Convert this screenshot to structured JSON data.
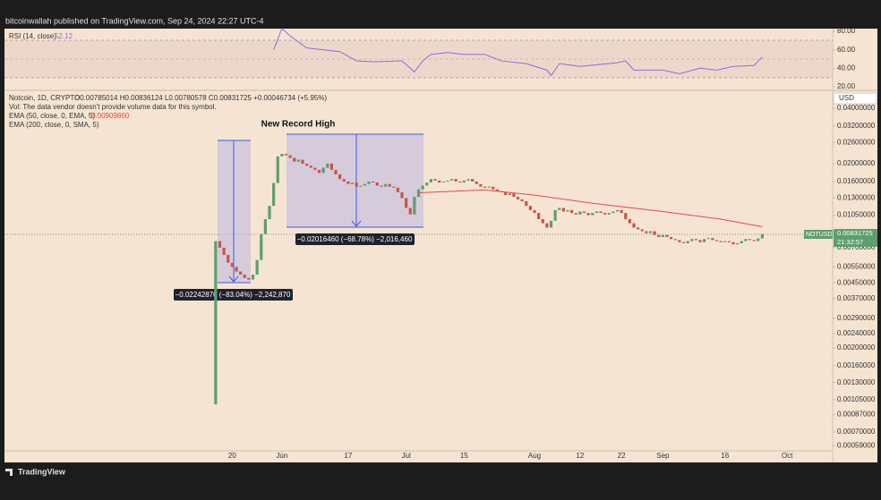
{
  "header": "bitcoinwallah published on TradingView.com, Sep 24, 2024 22:27 UTC-4",
  "footer": "TradingView",
  "chart_data": [
    {
      "type": "candlestick",
      "title": "Notcoin, 1D, CRYPTO",
      "ohlc_label": "O0.00785014 H0.00836124 L0.00780578 C0.00831725 +0.00046734 (+5.95%)",
      "volume_note": "Vol: The data vendor doesn't provide volume data for this symbol.",
      "ema200_label": "EMA (200, close, 0, SMA, 5)",
      "currency": "USD",
      "symbol_label": "NOTUSD",
      "countdown": "21:32:57",
      "annotations": [
        "New Record High",
        "−0.02242870 (−83.04%) −2,242,870",
        "−0.02016460 (−68.78%) −2,016,460"
      ],
      "up_color": "#5e9e6e",
      "down_color": "#c8554c",
      "log": true,
      "xlim": [
        "2024-03-26",
        "2024-10-12"
      ],
      "xticks": [
        {
          "value": "2024-05-20",
          "label": "20"
        },
        {
          "value": "2024-06-01",
          "label": "Jun"
        },
        {
          "value": "2024-06-17",
          "label": "17"
        },
        {
          "value": "2024-07-01",
          "label": "Jul"
        },
        {
          "value": "2024-07-15",
          "label": "15"
        },
        {
          "value": "2024-08-01",
          "label": "Aug"
        },
        {
          "value": "2024-08-12",
          "label": "12"
        },
        {
          "value": "2024-08-22",
          "label": "22"
        },
        {
          "value": "2024-09-01",
          "label": "Sep"
        },
        {
          "value": "2024-09-16",
          "label": "16"
        },
        {
          "value": "2024-10-01",
          "label": "Oct"
        }
      ],
      "ylim": [
        0.00049,
        0.0494
      ],
      "yticks": [
        {
          "value": 0.04,
          "label": "0.04000000"
        },
        {
          "value": 0.032,
          "label": "0.03200000"
        },
        {
          "value": 0.026,
          "label": "0.02600000"
        },
        {
          "value": 0.02,
          "label": "0.02000000"
        },
        {
          "value": 0.016,
          "label": "0.01600000"
        },
        {
          "value": 0.013,
          "label": "0.01300000"
        },
        {
          "value": 0.0105,
          "label": "0.01050000"
        },
        {
          "value": 0.007,
          "label": "0.00700000"
        },
        {
          "value": 0.0055,
          "label": "0.00550000"
        },
        {
          "value": 0.0045,
          "label": "0.00450000"
        },
        {
          "value": 0.0037,
          "label": "0.00370000"
        },
        {
          "value": 0.0029,
          "label": "0.00290000"
        },
        {
          "value": 0.0024,
          "label": "0.00240000"
        },
        {
          "value": 0.002,
          "label": "0.00200000"
        },
        {
          "value": 0.0016,
          "label": "0.00160000"
        },
        {
          "value": 0.0013,
          "label": "0.00130000"
        },
        {
          "value": 0.00105,
          "label": "0.00105000"
        },
        {
          "value": 0.00087,
          "label": "0.00087000"
        },
        {
          "value": 0.0007,
          "label": "0.00070000"
        },
        {
          "value": 0.00059,
          "label": "0.00059000"
        }
      ],
      "x": [
        "2024-05-16",
        "2024-05-17",
        "2024-05-18",
        "2024-05-19",
        "2024-05-20",
        "2024-05-21",
        "2024-05-22",
        "2024-05-23",
        "2024-05-24",
        "2024-05-25",
        "2024-05-26",
        "2024-05-27",
        "2024-05-28",
        "2024-05-29",
        "2024-05-30",
        "2024-05-31",
        "2024-06-01",
        "2024-06-02",
        "2024-06-03",
        "2024-06-04",
        "2024-06-05",
        "2024-06-06",
        "2024-06-07",
        "2024-06-08",
        "2024-06-09",
        "2024-06-10",
        "2024-06-11",
        "2024-06-12",
        "2024-06-13",
        "2024-06-14",
        "2024-06-15",
        "2024-06-16",
        "2024-06-17",
        "2024-06-18",
        "2024-06-19",
        "2024-06-20",
        "2024-06-21",
        "2024-06-22",
        "2024-06-23",
        "2024-06-24",
        "2024-06-25",
        "2024-06-26",
        "2024-06-27",
        "2024-06-28",
        "2024-06-29",
        "2024-06-30",
        "2024-07-01",
        "2024-07-02",
        "2024-07-03",
        "2024-07-04",
        "2024-07-05",
        "2024-07-06",
        "2024-07-07",
        "2024-07-08",
        "2024-07-09",
        "2024-07-10",
        "2024-07-11",
        "2024-07-12",
        "2024-07-13",
        "2024-07-14",
        "2024-07-15",
        "2024-07-16",
        "2024-07-17",
        "2024-07-18",
        "2024-07-19",
        "2024-07-20",
        "2024-07-21",
        "2024-07-22",
        "2024-07-23",
        "2024-07-24",
        "2024-07-25",
        "2024-07-26",
        "2024-07-27",
        "2024-07-28",
        "2024-07-29",
        "2024-07-30",
        "2024-07-31",
        "2024-08-01",
        "2024-08-02",
        "2024-08-03",
        "2024-08-04",
        "2024-08-05",
        "2024-08-06",
        "2024-08-07",
        "2024-08-08",
        "2024-08-09",
        "2024-08-10",
        "2024-08-11",
        "2024-08-12",
        "2024-08-13",
        "2024-08-14",
        "2024-08-15",
        "2024-08-16",
        "2024-08-17",
        "2024-08-18",
        "2024-08-19",
        "2024-08-20",
        "2024-08-21",
        "2024-08-22",
        "2024-08-23",
        "2024-08-24",
        "2024-08-25",
        "2024-08-26",
        "2024-08-27",
        "2024-08-28",
        "2024-08-29",
        "2024-08-30",
        "2024-08-31",
        "2024-09-01",
        "2024-09-02",
        "2024-09-03",
        "2024-09-04",
        "2024-09-05",
        "2024-09-06",
        "2024-09-07",
        "2024-09-08",
        "2024-09-09",
        "2024-09-10",
        "2024-09-11",
        "2024-09-12",
        "2024-09-13",
        "2024-09-14",
        "2024-09-15",
        "2024-09-16",
        "2024-09-17",
        "2024-09-18",
        "2024-09-19",
        "2024-09-20",
        "2024-09-21",
        "2024-09-22",
        "2024-09-23",
        "2024-09-24",
        "2024-09-25"
      ],
      "open": [
        0.00099,
        0.0076,
        0.007,
        0.0064,
        0.0058,
        0.0055,
        0.0052,
        0.005,
        0.0048,
        0.0047,
        0.005,
        0.006,
        0.0083,
        0.01,
        0.0118,
        0.0157,
        0.0219,
        0.0226,
        0.0222,
        0.0215,
        0.0205,
        0.021,
        0.02,
        0.0195,
        0.019,
        0.0185,
        0.0178,
        0.019,
        0.02,
        0.0185,
        0.0175,
        0.0165,
        0.016,
        0.0155,
        0.0158,
        0.015,
        0.0152,
        0.0155,
        0.016,
        0.0158,
        0.0152,
        0.015,
        0.0155,
        0.015,
        0.0148,
        0.014,
        0.013,
        0.0115,
        0.0106,
        0.0132,
        0.0145,
        0.0152,
        0.0158,
        0.0165,
        0.0162,
        0.0158,
        0.016,
        0.0162,
        0.0165,
        0.016,
        0.0158,
        0.0162,
        0.0165,
        0.016,
        0.0155,
        0.015,
        0.0148,
        0.015,
        0.0145,
        0.0142,
        0.014,
        0.0135,
        0.0138,
        0.0132,
        0.0128,
        0.0125,
        0.0118,
        0.0112,
        0.0108,
        0.01,
        0.0095,
        0.009,
        0.0098,
        0.0112,
        0.0115,
        0.011,
        0.0112,
        0.0108,
        0.0106,
        0.011,
        0.0108,
        0.0105,
        0.0108,
        0.011,
        0.0108,
        0.0106,
        0.0108,
        0.011,
        0.0112,
        0.0108,
        0.01,
        0.0095,
        0.009,
        0.0088,
        0.0086,
        0.0084,
        0.0086,
        0.0082,
        0.008,
        0.0082,
        0.008,
        0.0078,
        0.0077,
        0.0075,
        0.0074,
        0.0076,
        0.0078,
        0.0077,
        0.0075,
        0.0078,
        0.0079,
        0.0077,
        0.0076,
        0.0075,
        0.0076,
        0.0075,
        0.0073,
        0.0074,
        0.0076,
        0.0078,
        0.0077,
        0.0076,
        0.00785014
      ],
      "close": [
        0.0076,
        0.007,
        0.0064,
        0.0058,
        0.0055,
        0.0052,
        0.005,
        0.0048,
        0.0047,
        0.005,
        0.006,
        0.0083,
        0.01,
        0.0118,
        0.0157,
        0.0219,
        0.0226,
        0.0222,
        0.0215,
        0.0205,
        0.021,
        0.02,
        0.0195,
        0.019,
        0.0185,
        0.0178,
        0.019,
        0.02,
        0.0185,
        0.0175,
        0.0165,
        0.016,
        0.0155,
        0.0158,
        0.015,
        0.0152,
        0.0155,
        0.016,
        0.0158,
        0.0152,
        0.015,
        0.0155,
        0.015,
        0.0148,
        0.014,
        0.013,
        0.0115,
        0.0106,
        0.0132,
        0.0145,
        0.0152,
        0.0158,
        0.0165,
        0.0162,
        0.0158,
        0.016,
        0.0162,
        0.0165,
        0.016,
        0.0158,
        0.0162,
        0.0165,
        0.016,
        0.0155,
        0.015,
        0.0148,
        0.015,
        0.0145,
        0.0142,
        0.014,
        0.0135,
        0.0138,
        0.0132,
        0.0128,
        0.0125,
        0.0118,
        0.0112,
        0.0108,
        0.01,
        0.0095,
        0.009,
        0.0098,
        0.0112,
        0.0115,
        0.011,
        0.0112,
        0.0108,
        0.0106,
        0.011,
        0.0108,
        0.0105,
        0.0108,
        0.011,
        0.0108,
        0.0106,
        0.0108,
        0.011,
        0.0112,
        0.0108,
        0.01,
        0.0095,
        0.009,
        0.0088,
        0.0086,
        0.0084,
        0.0086,
        0.0082,
        0.008,
        0.0082,
        0.008,
        0.0078,
        0.0077,
        0.0075,
        0.0074,
        0.0076,
        0.0078,
        0.0077,
        0.0075,
        0.0078,
        0.0079,
        0.0077,
        0.0076,
        0.0075,
        0.0076,
        0.0075,
        0.0073,
        0.0074,
        0.0076,
        0.0078,
        0.0077,
        0.0076,
        0.00785014,
        0.00831725
      ],
      "series": [
        {
          "name": "EMA (50, close, 0, EMA, 5)",
          "color": "#e8474a",
          "x": [
            "2024-07-04",
            "2024-07-20",
            "2024-08-01",
            "2024-08-15",
            "2024-09-01",
            "2024-09-15",
            "2024-09-25"
          ],
          "values": [
            0.0139,
            0.0144,
            0.0135,
            0.0122,
            0.011,
            0.01,
            0.0090986
          ],
          "value_label": "0.00909860"
        }
      ]
    },
    {
      "type": "line",
      "title": "RSI (14, close)",
      "xlim": [
        "2024-03-26",
        "2024-10-12"
      ],
      "ylim": [
        17,
        83
      ],
      "yticks": [
        {
          "value": 80,
          "label": "80.00"
        },
        {
          "value": 60,
          "label": "60.00"
        },
        {
          "value": 40,
          "label": "40.00"
        },
        {
          "value": 20,
          "label": "20.00"
        }
      ],
      "series": [
        {
          "color": "#8e6bd6",
          "x": [
            "2024-05-30",
            "2024-06-01",
            "2024-06-03",
            "2024-06-07",
            "2024-06-15",
            "2024-06-19",
            "2024-06-23",
            "2024-06-30",
            "2024-07-03",
            "2024-07-05",
            "2024-07-07",
            "2024-07-11",
            "2024-07-15",
            "2024-07-20",
            "2024-07-24",
            "2024-07-30",
            "2024-08-04",
            "2024-08-05",
            "2024-08-07",
            "2024-08-12",
            "2024-08-21",
            "2024-08-23",
            "2024-08-25",
            "2024-09-01",
            "2024-09-05",
            "2024-09-10",
            "2024-09-14",
            "2024-09-18",
            "2024-09-23",
            "2024-09-25"
          ],
          "values": [
            60,
            83,
            75,
            62,
            58,
            48,
            47,
            48,
            36,
            48,
            55,
            57,
            55,
            55,
            48,
            45,
            38,
            32,
            45,
            42,
            46,
            48,
            38,
            38,
            34,
            40,
            38,
            42,
            43,
            52.12
          ]
        }
      ]
    }
  ]
}
